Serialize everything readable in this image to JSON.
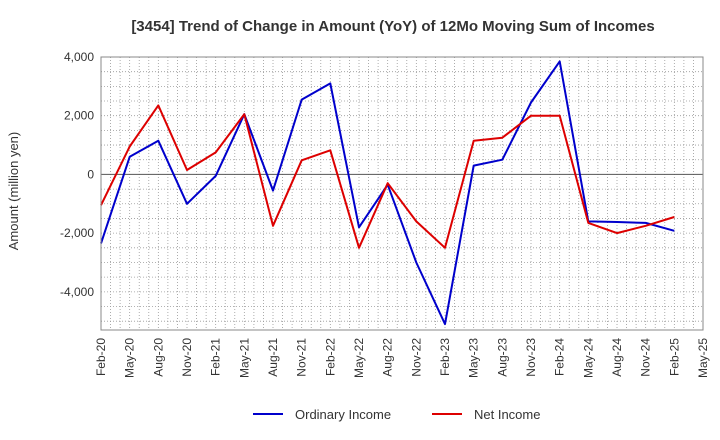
{
  "chart_data": {
    "type": "line",
    "title": "[3454]  Trend of Change in Amount (YoY) of 12Mo Moving Sum of Incomes",
    "ylabel": "Amount (million yen)",
    "xlabel": "",
    "ylim": [
      -5300,
      4000
    ],
    "yticks": [
      4000,
      2000,
      0,
      -2000,
      -4000
    ],
    "ytick_labels": [
      "4,000",
      "2,000",
      "0",
      "-2,000",
      "-4,000"
    ],
    "x_tick_labels": [
      "Feb-20",
      "May-20",
      "Aug-20",
      "Nov-20",
      "Feb-21",
      "May-21",
      "Aug-21",
      "Nov-21",
      "Feb-22",
      "May-22",
      "Aug-22",
      "Nov-22",
      "Feb-23",
      "May-23",
      "Aug-23",
      "Nov-23",
      "Feb-24",
      "May-24",
      "Aug-24",
      "Nov-24",
      "Feb-25",
      "May-25"
    ],
    "grid": true,
    "legend_position": "bottom",
    "series": [
      {
        "name": "Ordinary Income",
        "color": "#0000cc",
        "values": [
          -2350,
          600,
          1150,
          -1000,
          -50,
          2050,
          -550,
          2550,
          3100,
          -1800,
          -350,
          -3000,
          -5100,
          300,
          500,
          2450,
          3850,
          -1600,
          -1620,
          -1650,
          -1920
        ]
      },
      {
        "name": "Net Income",
        "color": "#dd0000",
        "values": [
          -1050,
          950,
          2350,
          150,
          750,
          2050,
          -1750,
          480,
          820,
          -2500,
          -300,
          -1600,
          -2500,
          1150,
          1250,
          2000,
          2000,
          -1650,
          -2000,
          -1750,
          -1450
        ]
      }
    ]
  }
}
